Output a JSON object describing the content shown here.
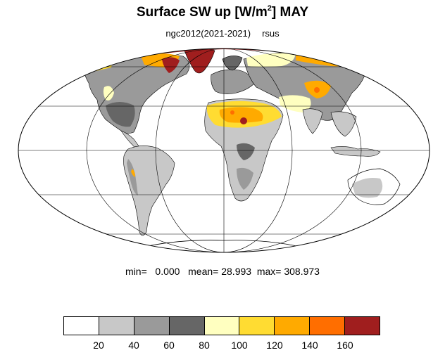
{
  "title": {
    "main": "Surface SW up [W/m",
    "sup": "2",
    "suffix": "]  MAY"
  },
  "subtitle": {
    "run": "ngc2012(2021-2021)",
    "variable": "rsus"
  },
  "stats": {
    "min_label": "min=",
    "min": "0.000",
    "mean_label": "mean=",
    "mean": "28.993",
    "max_label": "max=",
    "max": "308.973"
  },
  "colorbar": {
    "colors": [
      "#ffffff",
      "#c8c8c8",
      "#9a9a9a",
      "#666666",
      "#ffffc0",
      "#ffdc32",
      "#ffaa00",
      "#ff6e00",
      "#a01e1e"
    ],
    "ticks": [
      "20",
      "40",
      "60",
      "80",
      "100",
      "120",
      "140",
      "160"
    ]
  },
  "map": {
    "projection": "mollweide",
    "ocean_color": "#ffffff",
    "land_outline_color": "#000000",
    "graticule": true
  }
}
